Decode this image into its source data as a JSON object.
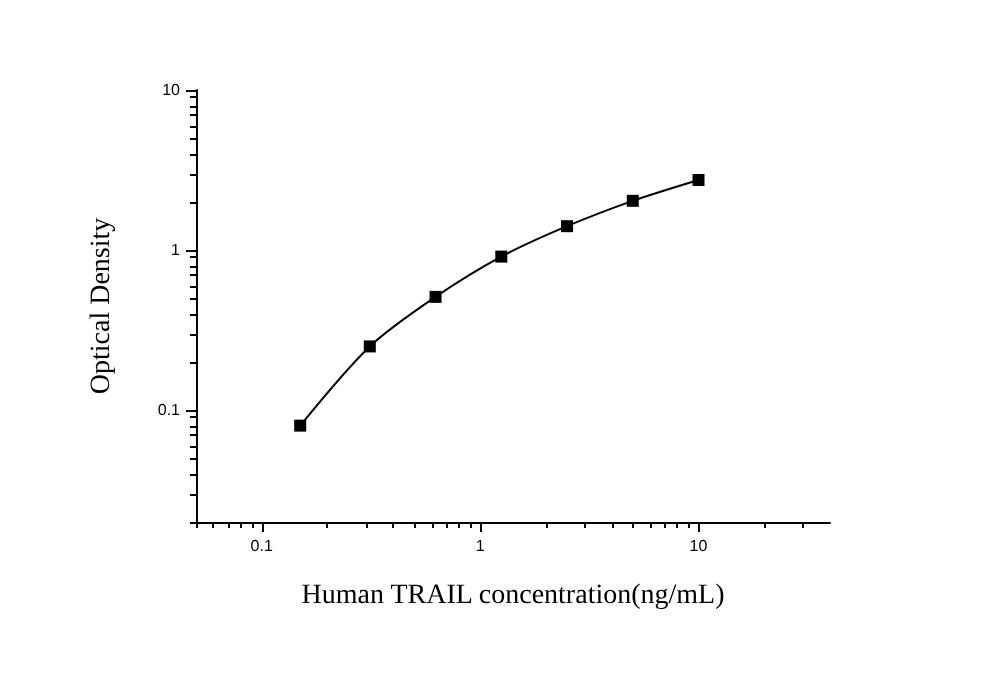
{
  "chart_data": {
    "type": "line",
    "xlabel": "Human TRAIL concentration(ng/mL)",
    "ylabel": "Optical Density",
    "x": [
      0.15,
      0.3125,
      0.625,
      1.25,
      2.5,
      5,
      10
    ],
    "values": [
      0.08,
      0.25,
      0.51,
      0.91,
      1.41,
      2.03,
      2.74
    ],
    "color": "#000000",
    "marker": "square",
    "line_style": "solid",
    "log": "xy",
    "grid": false,
    "xlim": [
      0.05,
      40
    ],
    "ylim": [
      0.02,
      10
    ],
    "xticks": [
      0.1,
      1,
      10
    ],
    "yticks": [
      0.1,
      1,
      10
    ]
  }
}
